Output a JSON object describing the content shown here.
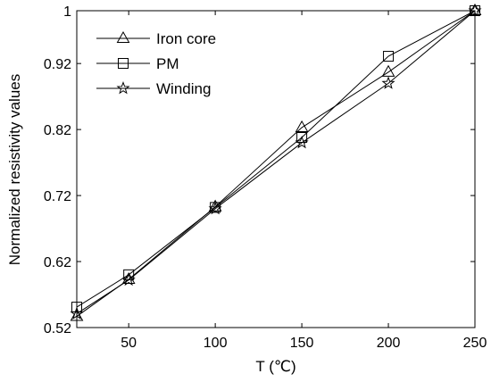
{
  "chart_data": {
    "type": "line",
    "title": "",
    "xlabel": "T (℃)",
    "ylabel": "Normalized resistivity values",
    "xlim": [
      20,
      250
    ],
    "ylim": [
      0.52,
      1.0
    ],
    "xticks": [
      50,
      100,
      150,
      200,
      250
    ],
    "yticks": [
      0.52,
      0.62,
      0.72,
      0.82,
      0.92,
      1.0
    ],
    "xtick_labels": [
      "50",
      "100",
      "150",
      "200",
      "250"
    ],
    "ytick_labels": [
      "0.52",
      "0.62",
      "0.72",
      "0.82",
      "0.92",
      "1"
    ],
    "x": [
      20,
      50,
      100,
      150,
      200,
      250
    ],
    "grid": false,
    "legend_position": "top-left",
    "series": [
      {
        "name": "Iron core",
        "marker": "triangle",
        "color": "#000000",
        "values": [
          0.537,
          0.593,
          0.703,
          0.823,
          0.907,
          1.0
        ]
      },
      {
        "name": "PM",
        "marker": "square",
        "color": "#000000",
        "values": [
          0.551,
          0.6,
          0.702,
          0.808,
          0.931,
          1.0
        ]
      },
      {
        "name": "Winding",
        "marker": "star",
        "color": "#000000",
        "values": [
          0.541,
          0.592,
          0.7,
          0.8,
          0.89,
          1.0
        ]
      }
    ]
  }
}
